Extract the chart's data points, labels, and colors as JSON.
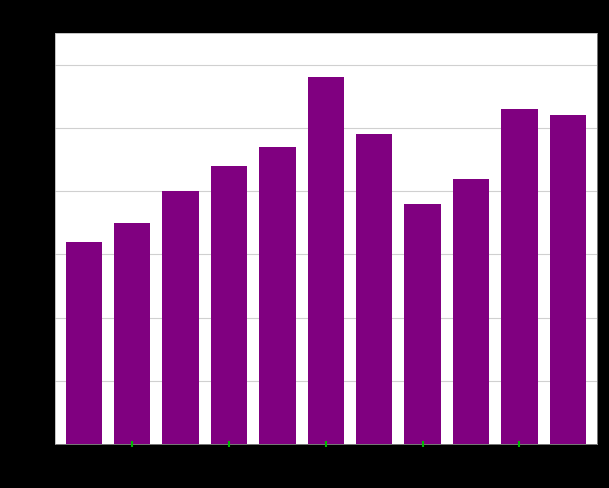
{
  "values": [
    3.2,
    3.5,
    4.0,
    4.4,
    4.7,
    5.8,
    4.9,
    3.8,
    4.2,
    5.3,
    5.2
  ],
  "bar_color": "#800080",
  "background_color": "#000000",
  "plot_bg_color": "#ffffff",
  "grid_color": "#d0d0d0",
  "ylim": [
    0,
    6.5
  ],
  "bar_width": 0.75,
  "title": "",
  "xlabel": "",
  "ylabel": "",
  "green_tick_color": "#00bb00",
  "spine_color": "#aaaaaa",
  "grid_linewidth": 0.8
}
